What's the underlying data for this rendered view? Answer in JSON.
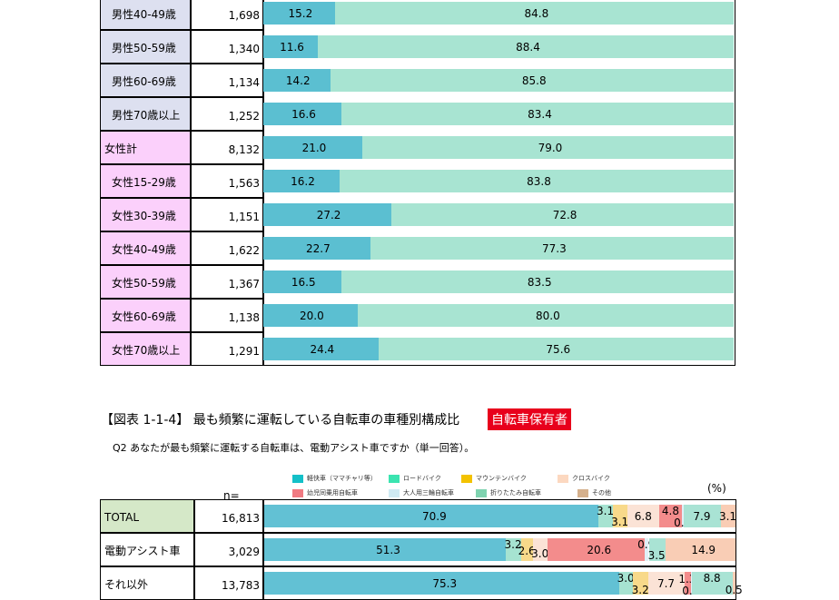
{
  "top_table": {
    "rows": [
      {
        "label": "男性40-49歳",
        "n": "1,698",
        "yes": 15.2,
        "no": 84.8,
        "group": "male"
      },
      {
        "label": "男性50-59歳",
        "n": "1,340",
        "yes": 11.6,
        "no": 88.4,
        "group": "male"
      },
      {
        "label": "男性60-69歳",
        "n": "1,134",
        "yes": 14.2,
        "no": 85.8,
        "group": "male"
      },
      {
        "label": "男性70歳以上",
        "n": "1,252",
        "yes": 16.6,
        "no": 83.4,
        "group": "male"
      },
      {
        "label": "女性計",
        "n": "8,132",
        "yes": 21.0,
        "no": 79.0,
        "group": "female-total"
      },
      {
        "label": "女性15-29歳",
        "n": "1,563",
        "yes": 16.2,
        "no": 83.8,
        "group": "female"
      },
      {
        "label": "女性30-39歳",
        "n": "1,151",
        "yes": 27.2,
        "no": 72.8,
        "group": "female"
      },
      {
        "label": "女性40-49歳",
        "n": "1,622",
        "yes": 22.7,
        "no": 77.3,
        "group": "female"
      },
      {
        "label": "女性50-59歳",
        "n": "1,367",
        "yes": 16.5,
        "no": 83.5,
        "group": "female"
      },
      {
        "label": "女性60-69歳",
        "n": "1,138",
        "yes": 20.0,
        "no": 80.0,
        "group": "female"
      },
      {
        "label": "女性70歳以上",
        "n": "1,291",
        "yes": 24.4,
        "no": 75.6,
        "group": "female"
      }
    ],
    "colors": {
      "yes": "#5bbfd1",
      "no": "#a8e4d2",
      "male_bg": "#dde0f0",
      "female_bg": "#fbd0fb"
    }
  },
  "section2": {
    "title": "【図表 1-1-4】 最も頻繁に運転している自転車の車種別構成比",
    "badge": "自転車保有者",
    "question": "Q2  あなたが最も頻繁に運転する自転車は、電動アシスト車ですか（単一回答）。",
    "n_header": "n=",
    "unit": "(%)"
  },
  "chart_data": {
    "type": "bar",
    "stacked": true,
    "orientation": "horizontal",
    "legend": [
      {
        "name": "軽快車（ママチャリ等）",
        "color": "#13c0c8"
      },
      {
        "name": "ロードバイク",
        "color": "#3be4b0"
      },
      {
        "name": "マウンテンバイク",
        "color": "#f3c200"
      },
      {
        "name": "クロスバイク",
        "color": "#fcd8c0"
      },
      {
        "name": "幼児同乗用自転車",
        "color": "#f07a82"
      },
      {
        "name": "大人用三輪自転車",
        "color": "#cfeaf3"
      },
      {
        "name": "折りたたみ自転車",
        "color": "#7fd3b0"
      },
      {
        "name": "その他",
        "color": "#d5b08c"
      }
    ],
    "rows": [
      {
        "label": "TOTAL",
        "n": "16,813",
        "segments": [
          {
            "cat": 0,
            "value": 70.9,
            "color": "#62c1d4"
          },
          {
            "cat": 1,
            "value": 3.1,
            "color": "#a6e3d1"
          },
          {
            "cat": 2,
            "value": 3.1,
            "color": "#f8d98a"
          },
          {
            "cat": 3,
            "value": 6.8,
            "color": "#fbe3d6"
          },
          {
            "cat": 4,
            "value": 4.8,
            "color": "#f38c8c"
          },
          {
            "cat": 5,
            "value": 0.3,
            "color": "#dff0f7"
          },
          {
            "cat": 6,
            "value": 7.9,
            "color": "#a9e3d4"
          },
          {
            "cat": 7,
            "value": 3.1,
            "color": "#f9cdb5"
          }
        ]
      },
      {
        "label": "電動アシスト車",
        "n": "3,029",
        "segments": [
          {
            "cat": 0,
            "value": 51.3,
            "color": "#62c1d4"
          },
          {
            "cat": 1,
            "value": 3.2,
            "color": "#a6e3d1"
          },
          {
            "cat": 2,
            "value": 2.6,
            "color": "#f8d98a"
          },
          {
            "cat": 3,
            "value": 3.0,
            "color": "#fbe3d6"
          },
          {
            "cat": 4,
            "value": 20.6,
            "color": "#f38c8c"
          },
          {
            "cat": 5,
            "value": 0.9,
            "color": "#dff0f7"
          },
          {
            "cat": 6,
            "value": 3.5,
            "color": "#a9e3d4"
          },
          {
            "cat": 7,
            "value": 14.9,
            "color": "#f9cdb5"
          }
        ]
      },
      {
        "label": "それ以外",
        "n": "13,783",
        "segments": [
          {
            "cat": 0,
            "value": 75.3,
            "color": "#62c1d4"
          },
          {
            "cat": 1,
            "value": 3.0,
            "color": "#a6e3d1"
          },
          {
            "cat": 2,
            "value": 3.2,
            "color": "#f8d98a"
          },
          {
            "cat": 3,
            "value": 7.7,
            "color": "#fbe3d6"
          },
          {
            "cat": 4,
            "value": 1.3,
            "color": "#f38c8c"
          },
          {
            "cat": 5,
            "value": 0.2,
            "color": "#dff0f7"
          },
          {
            "cat": 6,
            "value": 8.8,
            "color": "#a9e3d4"
          },
          {
            "cat": 7,
            "value": 0.5,
            "color": "#f9cdb5"
          }
        ]
      }
    ],
    "xlim": [
      0,
      100
    ]
  }
}
